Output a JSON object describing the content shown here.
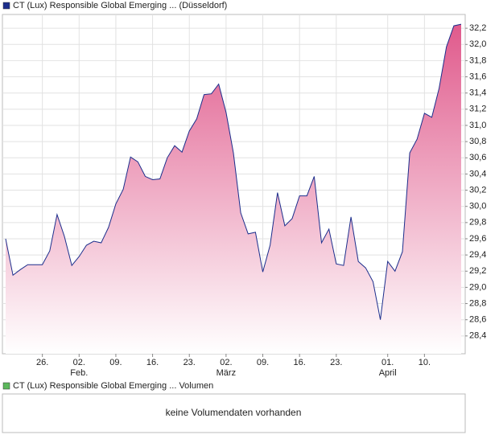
{
  "chart_data": {
    "type": "area",
    "series": [
      {
        "name": "CT (Lux) Responsible Global Emerging ... (Düsseldorf)",
        "color": "#1c2e8c",
        "fill_top": "#e05a8c",
        "fill_bottom": "#ffffff",
        "values": [
          29.6,
          29.15,
          29.22,
          29.28,
          29.28,
          29.28,
          29.45,
          29.9,
          29.63,
          29.27,
          29.38,
          29.52,
          29.57,
          29.55,
          29.74,
          30.03,
          30.21,
          30.61,
          30.55,
          30.37,
          30.33,
          30.34,
          30.6,
          30.75,
          30.67,
          30.93,
          31.08,
          31.38,
          31.39,
          31.51,
          31.16,
          30.66,
          29.92,
          29.66,
          29.68,
          29.19,
          29.52,
          30.17,
          29.76,
          29.85,
          30.13,
          30.13,
          30.37,
          29.55,
          29.72,
          29.29,
          29.27,
          29.87,
          29.32,
          29.24,
          29.07,
          28.6,
          29.32,
          29.2,
          29.44,
          30.66,
          30.83,
          31.15,
          31.1,
          31.46,
          31.97,
          32.23,
          32.25
        ]
      }
    ],
    "categories": [
      null,
      null,
      null,
      null,
      null,
      "26.",
      null,
      null,
      null,
      null,
      "02.",
      null,
      null,
      null,
      null,
      "09.",
      null,
      null,
      null,
      null,
      "16.",
      null,
      null,
      null,
      null,
      "23.",
      null,
      null,
      null,
      null,
      "02.",
      null,
      null,
      null,
      null,
      "09.",
      null,
      null,
      null,
      null,
      "16.",
      null,
      null,
      null,
      null,
      "23.",
      null,
      null,
      null,
      null,
      null,
      null,
      "01.",
      null,
      null,
      null,
      null,
      "10.",
      null,
      null,
      null,
      null,
      null
    ],
    "month_labels": [
      null,
      null,
      null,
      null,
      null,
      null,
      null,
      null,
      null,
      null,
      "Feb.",
      null,
      null,
      null,
      null,
      null,
      null,
      null,
      null,
      null,
      null,
      null,
      null,
      null,
      null,
      null,
      null,
      null,
      null,
      null,
      "März",
      null,
      null,
      null,
      null,
      null,
      null,
      null,
      null,
      null,
      null,
      null,
      null,
      null,
      null,
      null,
      null,
      null,
      null,
      null,
      null,
      null,
      "April",
      null,
      null,
      null,
      null,
      null,
      null,
      null,
      null,
      null,
      null
    ],
    "ylim": [
      28.18,
      32.37
    ],
    "yticks": [
      {
        "value": 28.4,
        "label": "28,4"
      },
      {
        "value": 28.6,
        "label": "28,6"
      },
      {
        "value": 28.8,
        "label": "28,8"
      },
      {
        "value": 29.0,
        "label": "29,0"
      },
      {
        "value": 29.2,
        "label": "29,2"
      },
      {
        "value": 29.4,
        "label": "29,4"
      },
      {
        "value": 29.6,
        "label": "29,6"
      },
      {
        "value": 29.8,
        "label": "29,8"
      },
      {
        "value": 30.0,
        "label": "30,0"
      },
      {
        "value": 30.2,
        "label": "30,2"
      },
      {
        "value": 30.4,
        "label": "30,4"
      },
      {
        "value": 30.6,
        "label": "30,6"
      },
      {
        "value": 30.8,
        "label": "30,8"
      },
      {
        "value": 31.0,
        "label": "31,0"
      },
      {
        "value": 31.2,
        "label": "31,2"
      },
      {
        "value": 31.4,
        "label": "31,4"
      },
      {
        "value": 31.6,
        "label": "31,6"
      },
      {
        "value": 31.8,
        "label": "31,8"
      },
      {
        "value": 32.0,
        "label": "32,0"
      },
      {
        "value": 32.2,
        "label": "32,2"
      }
    ],
    "grid": true
  },
  "volume_panel": {
    "title": "CT (Lux) Responsible Global Emerging ... Volumen",
    "color": "#5cb85c",
    "message": "keine Volumendaten vorhanden"
  }
}
